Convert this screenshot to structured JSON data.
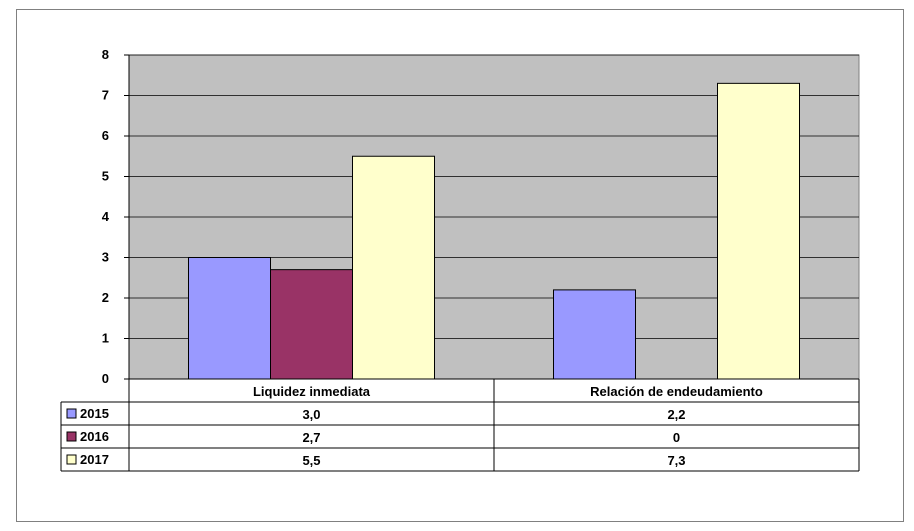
{
  "chart_data": {
    "type": "bar",
    "title": "",
    "xlabel": "",
    "ylabel": "",
    "ylim": [
      0,
      8
    ],
    "yticks": [
      0,
      1,
      2,
      3,
      4,
      5,
      6,
      7,
      8
    ],
    "grid": true,
    "legend": "data-table-left",
    "categories": [
      "Liquidez inmediata",
      "Relación de endeudamiento"
    ],
    "series": [
      {
        "name": "2015",
        "color": "#9999FF",
        "values": [
          3.0,
          2.2
        ],
        "labels": [
          "3,0",
          "2,2"
        ]
      },
      {
        "name": "2016",
        "color": "#993366",
        "values": [
          2.7,
          0
        ],
        "labels": [
          "2,7",
          "0"
        ]
      },
      {
        "name": "2017",
        "color": "#FFFFCC",
        "values": [
          5.5,
          7.3
        ],
        "labels": [
          "5,5",
          "7,3"
        ]
      }
    ],
    "colors": {
      "plot_background": "#C0C0C0",
      "gridline": "#000000"
    }
  }
}
